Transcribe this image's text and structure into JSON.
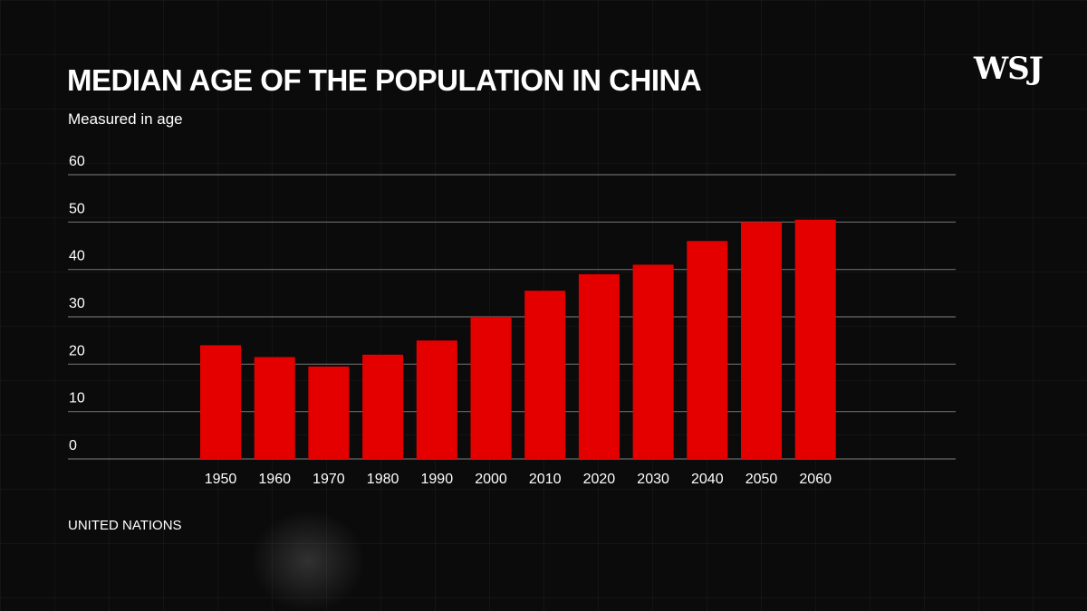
{
  "header": {
    "title": "MEDIAN AGE OF THE POPULATION IN CHINA",
    "subtitle": "Measured in age",
    "logo": "WSJ"
  },
  "footer": {
    "source": "UNITED NATIONS"
  },
  "colors": {
    "background": "#0b0b0b",
    "bar": "#e50000",
    "grid": "#8a8a8a",
    "text": "#ffffff"
  },
  "chart_data": {
    "type": "bar",
    "title": "MEDIAN AGE OF THE POPULATION IN CHINA",
    "subtitle": "Measured in age",
    "categories": [
      "1950",
      "1960",
      "1970",
      "1980",
      "1990",
      "2000",
      "2010",
      "2020",
      "2030",
      "2040",
      "2050",
      "2060"
    ],
    "values": [
      24,
      21.5,
      19.5,
      22,
      25,
      30,
      35.5,
      39,
      41,
      46,
      50,
      50.5
    ],
    "yticks": [
      0,
      10,
      20,
      30,
      40,
      50,
      60
    ],
    "ylim": [
      0,
      60
    ],
    "grid": true,
    "source": "UNITED NATIONS"
  }
}
